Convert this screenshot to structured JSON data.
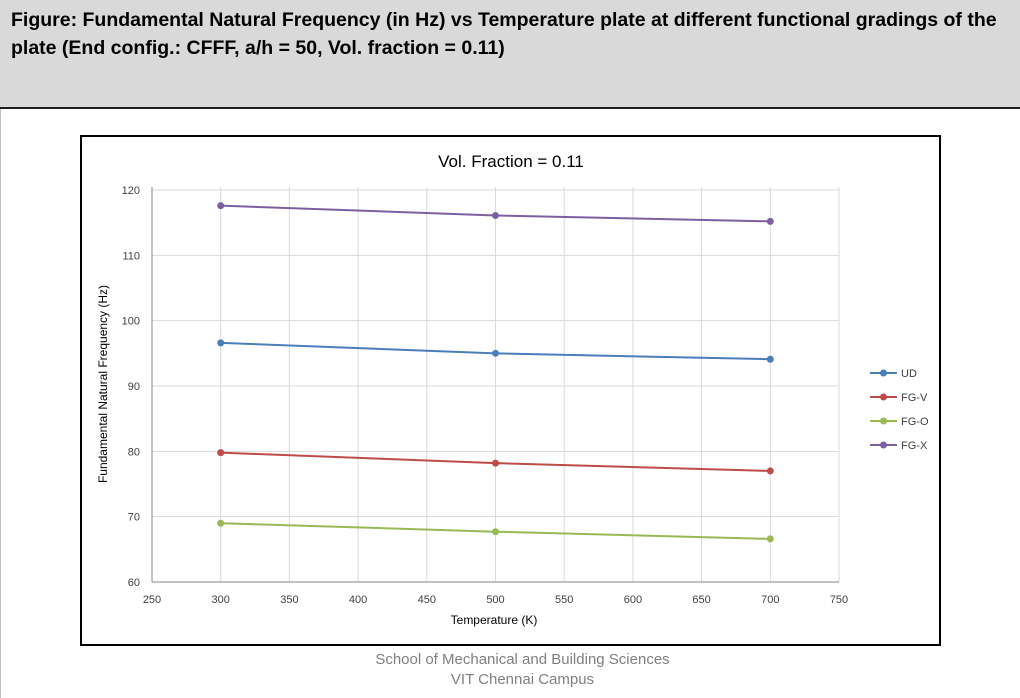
{
  "header": {
    "title": "Figure: Fundamental Natural Frequency (in Hz) vs Temperature plate at different functional gradings of the plate (End config.: CFFF, a/h = 50, Vol. fraction = 0.11)"
  },
  "footer": {
    "line1": "School of Mechanical and Building Sciences",
    "line2": "VIT Chennai Campus"
  },
  "chart_data": {
    "type": "line",
    "title": "Vol. Fraction = 0.11",
    "xlabel": "Temperature (K)",
    "ylabel": "Fundamental Natural Frequency (Hz)",
    "xlim": [
      250,
      750
    ],
    "ylim": [
      60,
      120
    ],
    "xticks": [
      250,
      300,
      350,
      400,
      450,
      500,
      550,
      600,
      650,
      700,
      750
    ],
    "yticks": [
      60,
      70,
      80,
      90,
      100,
      110,
      120
    ],
    "grid": true,
    "legend_position": "right",
    "x": [
      300,
      500,
      700
    ],
    "series": [
      {
        "name": "UD",
        "color": "#4a7ebb",
        "values": [
          96.6,
          95.0,
          94.1
        ]
      },
      {
        "name": "FG-V",
        "color": "#be4b48",
        "values": [
          79.8,
          78.2,
          77.0
        ]
      },
      {
        "name": "FG-O",
        "color": "#98b954",
        "values": [
          69.0,
          67.7,
          66.6
        ]
      },
      {
        "name": "FG-X",
        "color": "#7d5fa0",
        "values": [
          117.6,
          116.1,
          115.2
        ]
      }
    ]
  }
}
